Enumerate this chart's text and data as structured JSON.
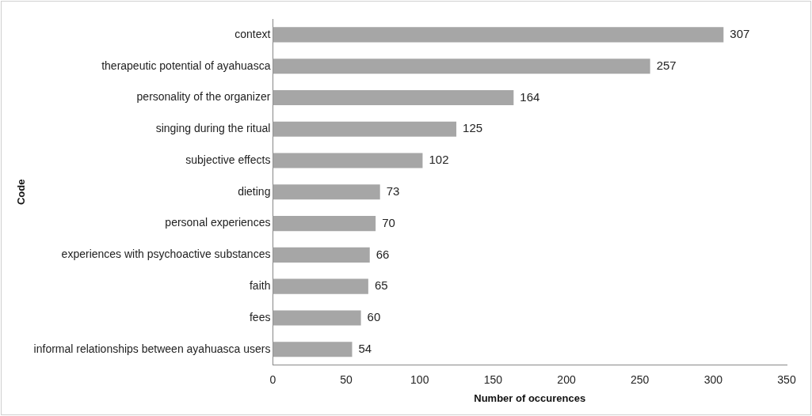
{
  "chart_data": {
    "type": "bar",
    "orientation": "horizontal",
    "xlabel": "Number of occurences",
    "ylabel": "Code",
    "categories": [
      "context",
      "therapeutic potential of ayahuasca",
      "personality of the organizer",
      "singing during the ritual",
      "subjective effects",
      "dieting",
      "personal experiences",
      "experiences with psychoactive substances",
      "faith",
      "fees",
      "informal relationships between ayahuasca users"
    ],
    "values": [
      307,
      257,
      164,
      125,
      102,
      73,
      70,
      66,
      65,
      60,
      54
    ],
    "color": "#a6a6a6",
    "xlim": [
      0,
      350
    ],
    "xticks": [
      0,
      50,
      100,
      150,
      200,
      250,
      300,
      350
    ],
    "data_labels": true,
    "grid": false,
    "legend": false
  }
}
